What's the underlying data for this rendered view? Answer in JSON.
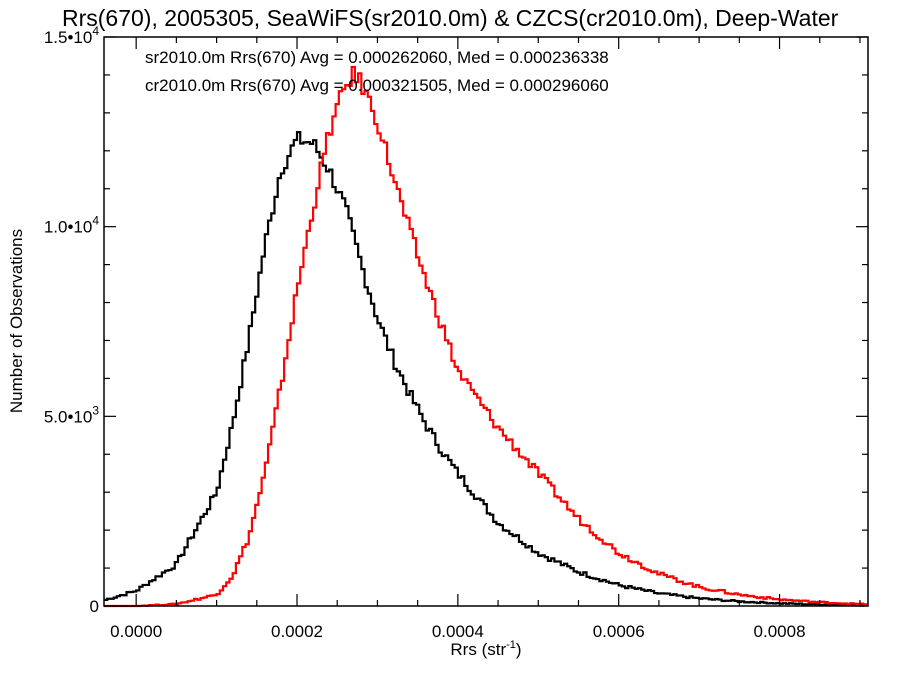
{
  "chart_data": {
    "type": "line",
    "title": "Rrs(670), 2005305, SeaWiFS(sr2010.0m) & CZCS(cr2010.0m), Deep-Water",
    "xlabel": {
      "base": "Rrs (str",
      "sup": "-1",
      "tail": ")"
    },
    "ylabel": "Number of Observations",
    "xlim": [
      -4e-05,
      0.00091
    ],
    "ylim": [
      0,
      15000
    ],
    "grid": false,
    "legend_position": "top-left",
    "x_ticks": [
      {
        "value": 0.0,
        "label": "0.0000"
      },
      {
        "value": 0.0002,
        "label": "0.0002"
      },
      {
        "value": 0.0004,
        "label": "0.0004"
      },
      {
        "value": 0.0006,
        "label": "0.0006"
      },
      {
        "value": 0.0008,
        "label": "0.0008"
      }
    ],
    "y_ticks": [
      {
        "value": 0,
        "label": "0",
        "exp": ""
      },
      {
        "value": 5000,
        "label": "5.0•10",
        "exp": "3"
      },
      {
        "value": 10000,
        "label": "1.0•10",
        "exp": "4"
      },
      {
        "value": 15000,
        "label": "1.5•10",
        "exp": "4"
      }
    ],
    "series": [
      {
        "name": "sr2010.0m",
        "color": "#000000",
        "annotation": "sr2010.0m Rrs(670) Avg = 0.000262060, Med = 0.000236338",
        "x": [
          -4e-05,
          0.0,
          5e-05,
          0.0001,
          0.00012,
          0.00014,
          0.00016,
          0.00018,
          0.0002,
          0.00022,
          0.00024,
          0.00026,
          0.00028,
          0.0003,
          0.00032,
          0.00034,
          0.00036,
          0.00038,
          0.0004,
          0.00045,
          0.0005,
          0.00055,
          0.0006,
          0.00065,
          0.0007,
          0.00075,
          0.0008,
          0.00085,
          0.0009
        ],
        "y": [
          150,
          400,
          1100,
          3000,
          4800,
          7000,
          9500,
          11500,
          12300,
          12200,
          11500,
          10500,
          9000,
          7600,
          6500,
          5600,
          4800,
          4100,
          3500,
          2200,
          1400,
          900,
          550,
          330,
          200,
          120,
          70,
          40,
          20
        ]
      },
      {
        "name": "cr2010.0m",
        "color": "#ff0000",
        "annotation": "cr2010.0m Rrs(670) Avg = 0.000321505, Med = 0.000296060",
        "x": [
          -4e-05,
          0.0,
          5e-05,
          0.0001,
          0.00012,
          0.00014,
          0.00016,
          0.00018,
          0.0002,
          0.00022,
          0.00024,
          0.00026,
          0.00027,
          0.00028,
          0.0003,
          0.00032,
          0.00034,
          0.00036,
          0.00038,
          0.0004,
          0.00045,
          0.0005,
          0.00055,
          0.0006,
          0.00065,
          0.0007,
          0.00075,
          0.0008,
          0.00085,
          0.0009
        ],
        "y": [
          0,
          0,
          50,
          300,
          800,
          1800,
          3500,
          5800,
          8300,
          10500,
          12500,
          13700,
          14000,
          13800,
          12800,
          11300,
          9900,
          8600,
          7400,
          6200,
          4700,
          3500,
          2300,
          1400,
          850,
          500,
          300,
          170,
          100,
          50
        ]
      }
    ]
  }
}
